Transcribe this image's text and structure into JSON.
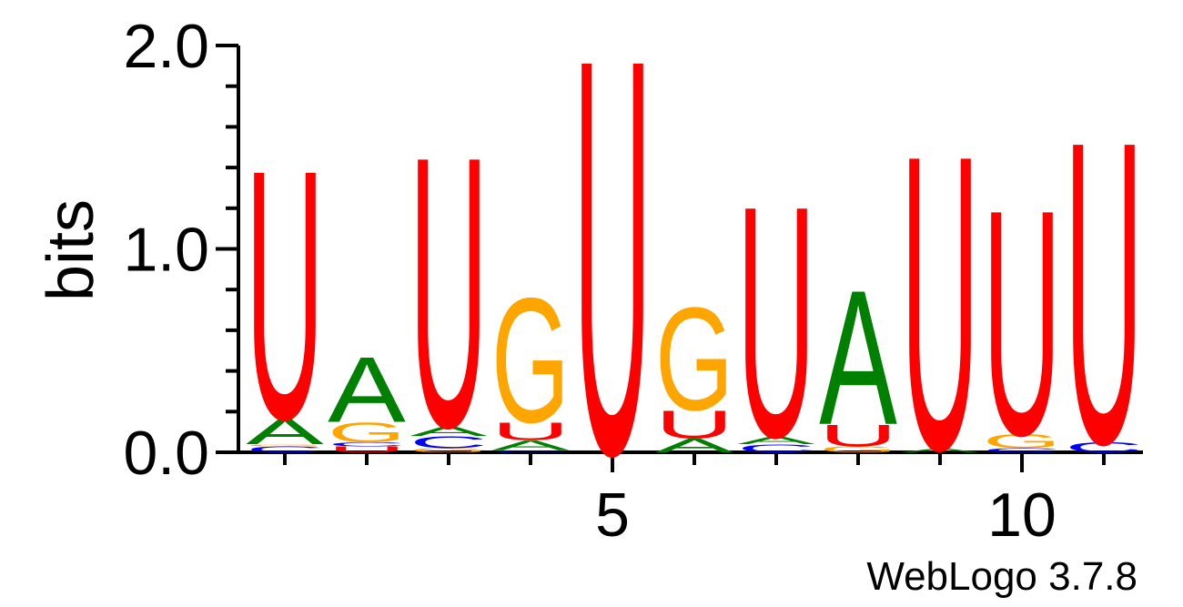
{
  "chart_data": {
    "type": "sequence-logo",
    "ylabel": "bits",
    "xlabel": "",
    "ylim": [
      0,
      2.0
    ],
    "y_ticks": [
      "0.0",
      "1.0",
      "2.0"
    ],
    "x_tick_labels": [
      {
        "position": 5,
        "label": "5"
      },
      {
        "position": 10,
        "label": "10"
      }
    ],
    "positions": [
      1,
      2,
      3,
      4,
      5,
      6,
      7,
      8,
      9,
      10,
      11
    ],
    "colors": {
      "U": "#ff0000",
      "A": "#008000",
      "G": "#ffa500",
      "C": "#0000ff"
    },
    "stacks": [
      {
        "position": 1,
        "letters": [
          {
            "base": "C",
            "bits": 0.03
          },
          {
            "base": "G",
            "bits": 0.01
          },
          {
            "base": "A",
            "bits": 0.13
          },
          {
            "base": "U",
            "bits": 1.26
          }
        ]
      },
      {
        "position": 2,
        "letters": [
          {
            "base": "U",
            "bits": 0.03
          },
          {
            "base": "C",
            "bits": 0.02
          },
          {
            "base": "G",
            "bits": 0.1
          },
          {
            "base": "A",
            "bits": 0.33
          }
        ]
      },
      {
        "position": 3,
        "letters": [
          {
            "base": "G",
            "bits": 0.02
          },
          {
            "base": "C",
            "bits": 0.06
          },
          {
            "base": "A",
            "bits": 0.05
          },
          {
            "base": "U",
            "bits": 1.37
          }
        ]
      },
      {
        "position": 4,
        "letters": [
          {
            "base": "C",
            "bits": 0.01
          },
          {
            "base": "A",
            "bits": 0.05
          },
          {
            "base": "U",
            "bits": 0.09
          },
          {
            "base": "G",
            "bits": 0.63
          }
        ]
      },
      {
        "position": 5,
        "letters": [
          {
            "base": "U",
            "bits": 2.0
          }
        ]
      },
      {
        "position": 6,
        "letters": [
          {
            "base": "A",
            "bits": 0.07
          },
          {
            "base": "U",
            "bits": 0.14
          },
          {
            "base": "G",
            "bits": 0.52
          }
        ]
      },
      {
        "position": 7,
        "letters": [
          {
            "base": "C",
            "bits": 0.04
          },
          {
            "base": "A",
            "bits": 0.04
          },
          {
            "base": "U",
            "bits": 1.17
          }
        ]
      },
      {
        "position": 8,
        "letters": [
          {
            "base": "G",
            "bits": 0.03
          },
          {
            "base": "U",
            "bits": 0.11
          },
          {
            "base": "A",
            "bits": 0.68
          }
        ]
      },
      {
        "position": 9,
        "letters": [
          {
            "base": "A",
            "bits": 0.02
          },
          {
            "base": "U",
            "bits": 1.49
          }
        ]
      },
      {
        "position": 10,
        "letters": [
          {
            "base": "C",
            "bits": 0.02
          },
          {
            "base": "G",
            "bits": 0.07
          },
          {
            "base": "U",
            "bits": 1.14
          }
        ]
      },
      {
        "position": 11,
        "letters": [
          {
            "base": "C",
            "bits": 0.05
          },
          {
            "base": "U",
            "bits": 1.53
          }
        ]
      }
    ]
  },
  "credit": "WebLogo 3.7.8"
}
